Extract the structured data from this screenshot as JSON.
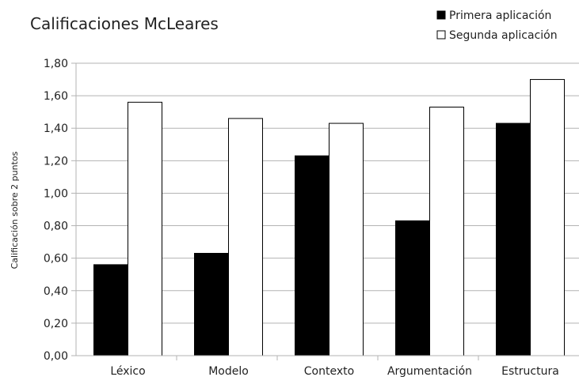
{
  "chart_data": {
    "type": "bar",
    "title": "Calificaciones McLeares",
    "xlabel": "",
    "ylabel": "Calificación sobre 2 puntos",
    "categories": [
      "Léxico",
      "Modelo",
      "Contexto",
      "Argumentación",
      "Estructura"
    ],
    "series": [
      {
        "name": "Primera aplicación",
        "values": [
          0.56,
          0.63,
          1.23,
          0.83,
          1.43
        ],
        "color": "#000000"
      },
      {
        "name": "Segunda aplicación",
        "values": [
          1.56,
          1.46,
          1.43,
          1.53,
          1.7
        ],
        "color": "#ffffff"
      }
    ],
    "ylim": [
      0,
      1.8
    ],
    "yticks": [
      "0,00",
      "0,20",
      "0,40",
      "0,60",
      "0,80",
      "1,00",
      "1,20",
      "1,40",
      "1,60",
      "1,80"
    ],
    "grid": true,
    "legend": "top-right"
  }
}
